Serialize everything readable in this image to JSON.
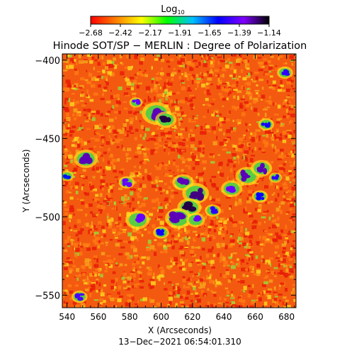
{
  "chart_data": {
    "type": "heatmap",
    "title": "Hinode SOT/SP − MERLIN : Degree of Polarization",
    "colorbar": {
      "label_main": "Log",
      "label_sub": "10",
      "ticks": [
        "−2.68",
        "−2.42",
        "−2.17",
        "−1.91",
        "−1.65",
        "−1.39",
        "−1.14"
      ],
      "range": [
        -2.68,
        -1.14
      ],
      "colormap": [
        "#ff0000",
        "#ff8000",
        "#ffff00",
        "#00ff00",
        "#00c0ff",
        "#0000ff",
        "#8000ff",
        "#000000"
      ]
    },
    "xlabel": "X (Arcseconds)",
    "ylabel": "Y (Arcseconds)",
    "xlim": [
      537,
      686
    ],
    "ylim": [
      -558,
      -396
    ],
    "x_ticks": [
      540,
      560,
      580,
      600,
      620,
      640,
      660,
      680
    ],
    "y_ticks": [
      -400,
      -450,
      -500,
      -550
    ],
    "field_colors": {
      "background": "#f35a10",
      "texture": [
        "#e81c08",
        "#ff7a12",
        "#f6a21a",
        "#ffd21e",
        "#9bd436"
      ]
    },
    "regions": [
      {
        "x": 597,
        "y": -434,
        "r": 5.5,
        "level": -1.3
      },
      {
        "x": 603,
        "y": -438,
        "r": 4,
        "level": -1.2
      },
      {
        "x": 584,
        "y": -427,
        "r": 2.5,
        "level": -1.4
      },
      {
        "x": 552,
        "y": -463,
        "r": 4.5,
        "level": -1.3
      },
      {
        "x": 578,
        "y": -478,
        "r": 3,
        "level": -1.4
      },
      {
        "x": 614,
        "y": -478,
        "r": 4,
        "level": -1.3
      },
      {
        "x": 622,
        "y": -485,
        "r": 5,
        "level": -1.25
      },
      {
        "x": 618,
        "y": -494,
        "r": 4.5,
        "level": -1.2
      },
      {
        "x": 611,
        "y": -501,
        "r": 5,
        "level": -1.3
      },
      {
        "x": 622,
        "y": -502,
        "r": 3.5,
        "level": -1.4
      },
      {
        "x": 633,
        "y": -496,
        "r": 3,
        "level": -1.5
      },
      {
        "x": 645,
        "y": -482,
        "r": 4,
        "level": -1.4
      },
      {
        "x": 655,
        "y": -474,
        "r": 4.5,
        "level": -1.3
      },
      {
        "x": 664,
        "y": -469,
        "r": 4,
        "level": -1.3
      },
      {
        "x": 673,
        "y": -475,
        "r": 2.5,
        "level": -1.5
      },
      {
        "x": 585,
        "y": -502,
        "r": 4.5,
        "level": -1.4
      },
      {
        "x": 600,
        "y": -510,
        "r": 3,
        "level": -1.55
      },
      {
        "x": 679,
        "y": -408,
        "r": 3,
        "level": -1.5
      },
      {
        "x": 667,
        "y": -441,
        "r": 3,
        "level": -1.55
      },
      {
        "x": 548,
        "y": -551,
        "r": 3,
        "level": -1.45
      },
      {
        "x": 663,
        "y": -487,
        "r": 3,
        "level": -1.55
      },
      {
        "x": 540,
        "y": -474,
        "r": 2.5,
        "level": -1.6
      }
    ],
    "timestamp": "13−Dec−2021 06:54:01.310"
  }
}
